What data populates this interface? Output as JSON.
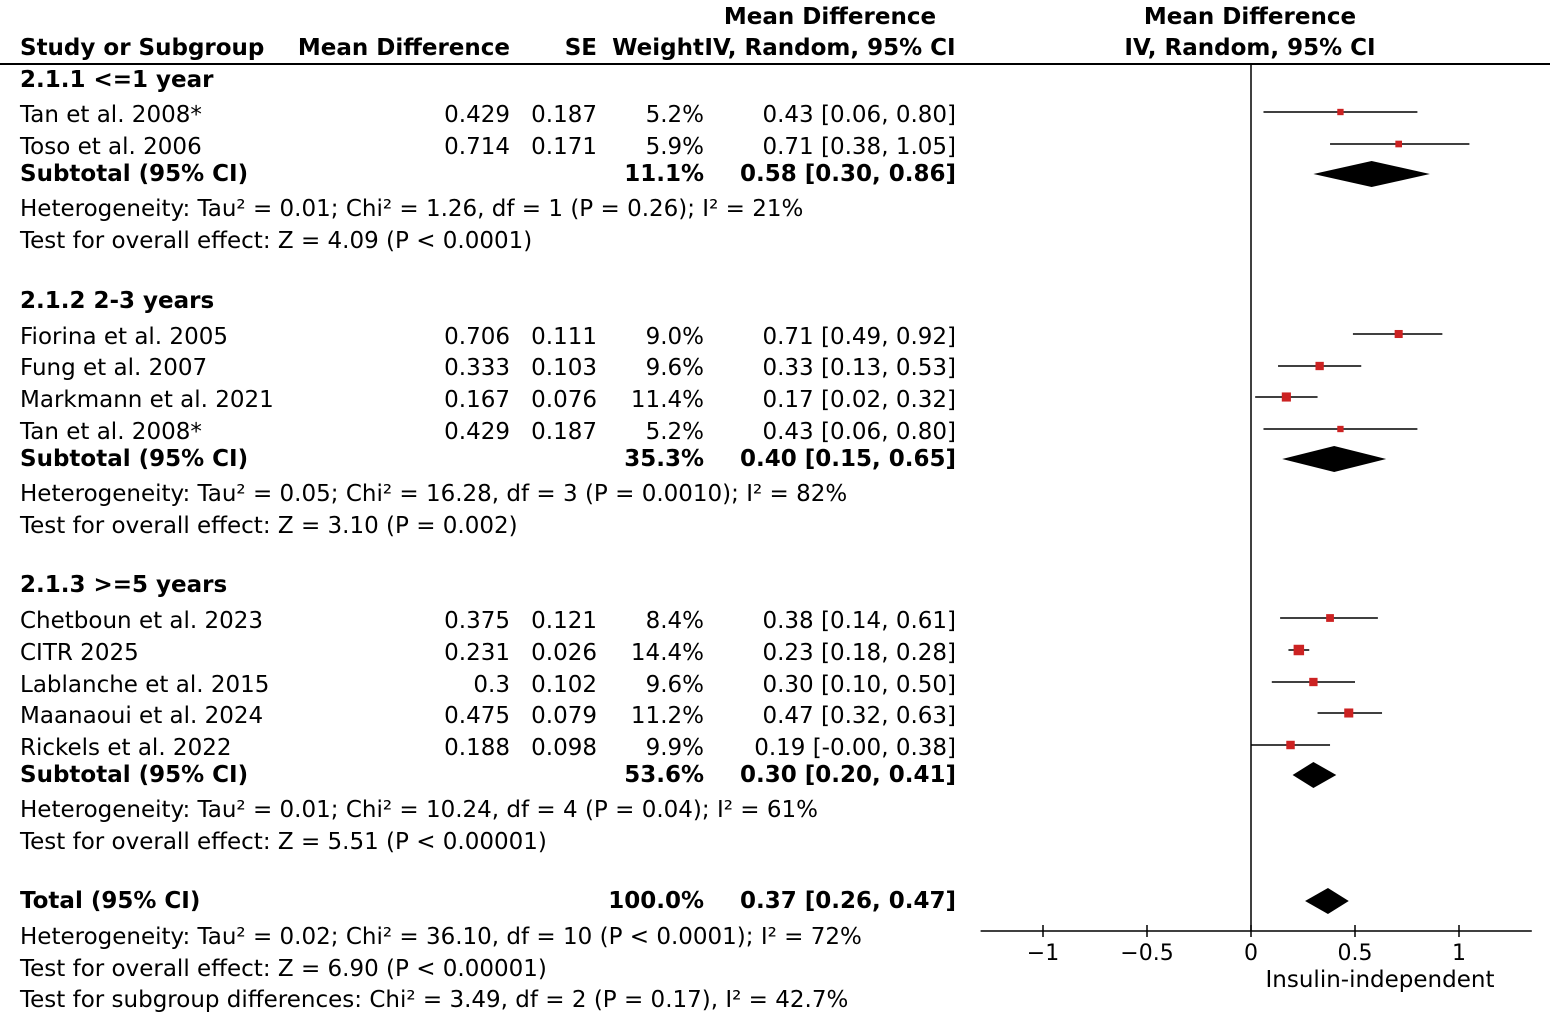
{
  "headers": {
    "study": "Study or Subgroup",
    "md": "Mean Difference",
    "se": "SE",
    "weight": "Weight",
    "ci_top": "Mean Difference",
    "ci_bottom": "IV, Random, 95% CI",
    "plot_top": "Mean Difference",
    "plot_bottom": "IV, Random, 95% CI"
  },
  "subgroups": [
    {
      "title": "2.1.1 <=1 year",
      "studies": [
        {
          "name": "Tan et al. 2008*",
          "md": "0.429",
          "se": "0.187",
          "weight": "5.2%",
          "ci": "0.43 [0.06, 0.80]"
        },
        {
          "name": "Toso et al. 2006",
          "md": "0.714",
          "se": "0.171",
          "weight": "5.9%",
          "ci": "0.71 [0.38, 1.05]"
        }
      ],
      "subtotal": {
        "label": "Subtotal (95% CI)",
        "weight": "11.1%",
        "ci": "0.58 [0.30, 0.86]"
      },
      "heterogeneity": "Heterogeneity: Tau² = 0.01; Chi² = 1.26, df = 1 (P = 0.26); I² = 21%",
      "overall": "Test for overall effect: Z = 4.09 (P < 0.0001)"
    },
    {
      "title": "2.1.2 2-3 years",
      "studies": [
        {
          "name": "Fiorina et al. 2005",
          "md": "0.706",
          "se": "0.111",
          "weight": "9.0%",
          "ci": "0.71 [0.49, 0.92]"
        },
        {
          "name": "Fung et al. 2007",
          "md": "0.333",
          "se": "0.103",
          "weight": "9.6%",
          "ci": "0.33 [0.13, 0.53]"
        },
        {
          "name": "Markmann et al. 2021",
          "md": "0.167",
          "se": "0.076",
          "weight": "11.4%",
          "ci": "0.17 [0.02, 0.32]"
        },
        {
          "name": "Tan et al. 2008*",
          "md": "0.429",
          "se": "0.187",
          "weight": "5.2%",
          "ci": "0.43 [0.06, 0.80]"
        }
      ],
      "subtotal": {
        "label": "Subtotal (95% CI)",
        "weight": "35.3%",
        "ci": "0.40 [0.15, 0.65]"
      },
      "heterogeneity": "Heterogeneity: Tau² = 0.05; Chi² = 16.28, df = 3 (P = 0.0010); I² = 82%",
      "overall": "Test for overall effect: Z = 3.10 (P = 0.002)"
    },
    {
      "title": "2.1.3 >=5 years",
      "studies": [
        {
          "name": "Chetboun et al. 2023",
          "md": "0.375",
          "se": "0.121",
          "weight": "8.4%",
          "ci": "0.38 [0.14, 0.61]"
        },
        {
          "name": "CITR 2025",
          "md": "0.231",
          "se": "0.026",
          "weight": "14.4%",
          "ci": "0.23 [0.18, 0.28]"
        },
        {
          "name": "Lablanche et al. 2015",
          "md": "0.3",
          "se": "0.102",
          "weight": "9.6%",
          "ci": "0.30 [0.10, 0.50]"
        },
        {
          "name": "Maanaoui et al. 2024",
          "md": "0.475",
          "se": "0.079",
          "weight": "11.2%",
          "ci": "0.47 [0.32, 0.63]"
        },
        {
          "name": "Rickels et al. 2022",
          "md": "0.188",
          "se": "0.098",
          "weight": "9.9%",
          "ci": "0.19 [-0.00, 0.38]"
        }
      ],
      "subtotal": {
        "label": "Subtotal (95% CI)",
        "weight": "53.6%",
        "ci": "0.30 [0.20, 0.41]"
      },
      "heterogeneity": "Heterogeneity: Tau² = 0.01; Chi² = 10.24, df = 4 (P = 0.04); I² = 61%",
      "overall": "Test for overall effect: Z = 5.51 (P < 0.00001)"
    }
  ],
  "total": {
    "label": "Total (95% CI)",
    "weight": "100.0%",
    "ci": "0.37 [0.26, 0.47]",
    "heterogeneity": "Heterogeneity: Tau² = 0.02; Chi² = 36.10, df = 10 (P < 0.0001); I² = 72%",
    "overall": "Test for overall effect: Z = 6.90 (P < 0.00001)",
    "subgroup_diff": "Test for subgroup differences: Chi² = 3.49, df = 2 (P = 0.17), I² = 42.7%"
  },
  "colors": {
    "point": "#cc2222",
    "diamond": "#000000",
    "line": "#000000"
  },
  "chart_data": {
    "type": "forest",
    "xlabel": "Insulin-independent",
    "xlim": [
      -1.3,
      1.35
    ],
    "ticks": [
      -1,
      -0.5,
      0,
      0.5,
      1
    ],
    "tick_labels": [
      "-1",
      "-0.5",
      "0",
      "0.5",
      "1"
    ],
    "studies": [
      {
        "name": "Tan et al. 2008*",
        "subgroup": 1,
        "est": 0.43,
        "lo": 0.06,
        "hi": 0.8,
        "weight": 5.2
      },
      {
        "name": "Toso et al. 2006",
        "subgroup": 1,
        "est": 0.71,
        "lo": 0.38,
        "hi": 1.05,
        "weight": 5.9
      },
      {
        "name": "Fiorina et al. 2005",
        "subgroup": 2,
        "est": 0.71,
        "lo": 0.49,
        "hi": 0.92,
        "weight": 9.0
      },
      {
        "name": "Fung et al. 2007",
        "subgroup": 2,
        "est": 0.33,
        "lo": 0.13,
        "hi": 0.53,
        "weight": 9.6
      },
      {
        "name": "Markmann et al. 2021",
        "subgroup": 2,
        "est": 0.17,
        "lo": 0.02,
        "hi": 0.32,
        "weight": 11.4
      },
      {
        "name": "Tan et al. 2008*",
        "subgroup": 2,
        "est": 0.43,
        "lo": 0.06,
        "hi": 0.8,
        "weight": 5.2
      },
      {
        "name": "Chetboun et al. 2023",
        "subgroup": 3,
        "est": 0.38,
        "lo": 0.14,
        "hi": 0.61,
        "weight": 8.4
      },
      {
        "name": "CITR 2025",
        "subgroup": 3,
        "est": 0.23,
        "lo": 0.18,
        "hi": 0.28,
        "weight": 14.4
      },
      {
        "name": "Lablanche et al. 2015",
        "subgroup": 3,
        "est": 0.3,
        "lo": 0.1,
        "hi": 0.5,
        "weight": 9.6
      },
      {
        "name": "Maanaoui et al. 2024",
        "subgroup": 3,
        "est": 0.47,
        "lo": 0.32,
        "hi": 0.63,
        "weight": 11.2
      },
      {
        "name": "Rickels et al. 2022",
        "subgroup": 3,
        "est": 0.19,
        "lo": -0.0,
        "hi": 0.38,
        "weight": 9.9
      }
    ],
    "subtotals": [
      {
        "subgroup": 1,
        "est": 0.58,
        "lo": 0.3,
        "hi": 0.86
      },
      {
        "subgroup": 2,
        "est": 0.4,
        "lo": 0.15,
        "hi": 0.65
      },
      {
        "subgroup": 3,
        "est": 0.3,
        "lo": 0.2,
        "hi": 0.41
      }
    ],
    "total": {
      "est": 0.37,
      "lo": 0.26,
      "hi": 0.47
    }
  }
}
